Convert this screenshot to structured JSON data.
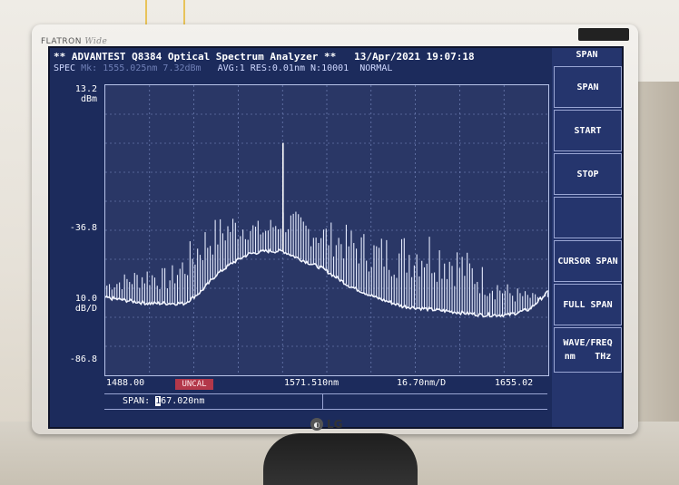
{
  "monitor": {
    "brand": "FLATRON",
    "brand_model": "Wide",
    "logo": "LG"
  },
  "header": {
    "line1_left": "** ADVANTEST Q8384 Optical Spectrum Analyzer **",
    "date": "13/Apr/2021",
    "time": "19:07:18",
    "mode": "SPEC",
    "marker_dim": "Mk: 1555.025nm 7.32dBm",
    "avg": "AVG:1",
    "res": "RES:0.01nm",
    "n": "N:10001",
    "sens": "NORMAL"
  },
  "y_axis": {
    "top": "13.2",
    "top_unit": "dBm",
    "mid": "-36.8",
    "scale": "10.0",
    "scale_unit": "dB/D",
    "bottom": "-86.8"
  },
  "x_axis": {
    "start": "1488.00",
    "center": "1571.510nm",
    "per_div": "16.70nm/D",
    "stop": "1655.02",
    "uncal": "UNCAL"
  },
  "span_entry": {
    "label": "SPAN:",
    "cursor_char": "1",
    "value_rest": "67.020nm"
  },
  "softkeys": {
    "title": "SPAN",
    "items": [
      "SPAN",
      "START",
      "STOP",
      "",
      "CURSOR SPAN",
      "FULL SPAN",
      "WAVE/FREQ"
    ],
    "unit_nm": "nm",
    "unit_thz": "THz"
  },
  "colors": {
    "screen_bg": "#1c2b5c",
    "trace": "#e6ecff",
    "uncal_bg": "#b3384a"
  },
  "chart_data": {
    "type": "line",
    "title": "",
    "xlabel": "",
    "ylabel": "",
    "xlim": [
      1488.0,
      1655.02
    ],
    "ylim": [
      -86.8,
      13.2
    ],
    "grid": true,
    "x": [
      1488,
      1496,
      1504,
      1512,
      1518,
      1524,
      1530,
      1536,
      1542,
      1548,
      1555,
      1562,
      1570,
      1580,
      1590,
      1600,
      1610,
      1620,
      1630,
      1640,
      1648,
      1655
    ],
    "envelope_dbm": [
      -60,
      -61,
      -62,
      -62,
      -62,
      -58,
      -52,
      -48,
      -45,
      -44,
      -44,
      -47,
      -50,
      -56,
      -60,
      -63,
      -64,
      -65,
      -66,
      -66,
      -64,
      -58
    ],
    "peaks_dbm": [
      -54,
      -51,
      -48,
      -50,
      -43,
      -35,
      -32,
      -30,
      -32,
      -34,
      7.3,
      -31,
      -33,
      -35,
      -38,
      -37,
      -35,
      -40,
      -48,
      -55,
      -58,
      -60
    ]
  }
}
